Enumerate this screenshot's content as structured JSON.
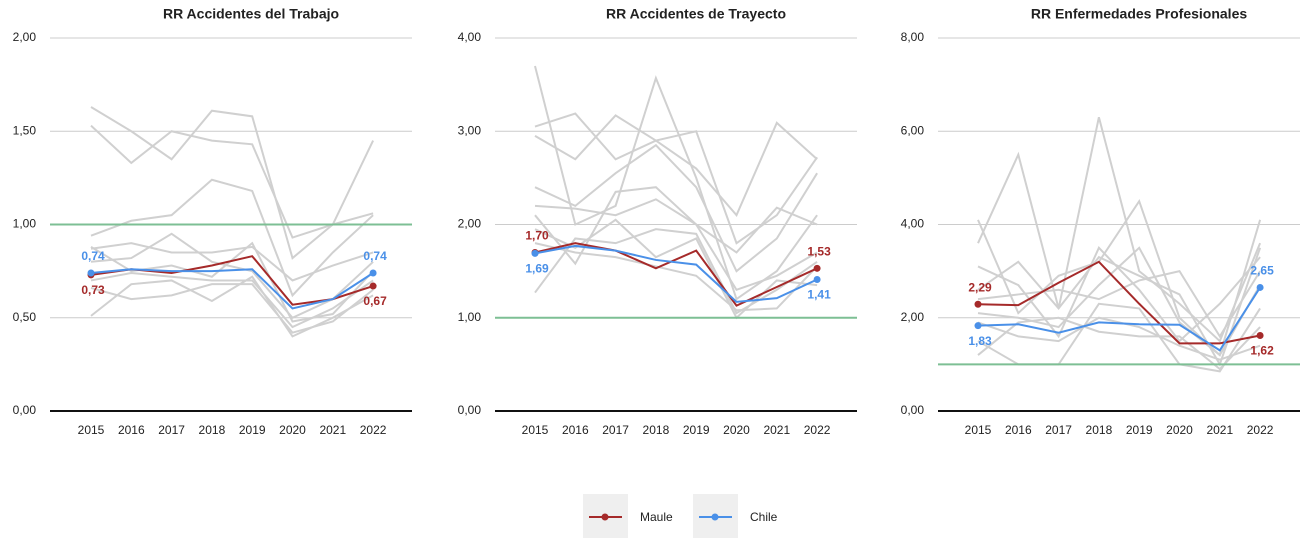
{
  "chart_data": [
    {
      "type": "line",
      "title": "RR Accidentes del Trabajo",
      "categories": [
        "2015",
        "2016",
        "2017",
        "2018",
        "2019",
        "2020",
        "2021",
        "2022"
      ],
      "ylim": [
        0,
        2
      ],
      "yticks": [
        {
          "value": 0,
          "label": "0,00"
        },
        {
          "value": 0.5,
          "label": "0,50"
        },
        {
          "value": 1,
          "label": "1,00"
        },
        {
          "value": 1.5,
          "label": "1,50"
        },
        {
          "value": 2,
          "label": "2,00"
        }
      ],
      "grid": true,
      "hline": 1,
      "hline_color": "#7dbf94",
      "series": [
        {
          "name": "Maule",
          "color": "#a52a2a",
          "values": [
            0.73,
            0.76,
            0.74,
            0.78,
            0.83,
            0.57,
            0.6,
            0.67
          ],
          "value_labels": [
            "0,73",
            null,
            null,
            null,
            null,
            null,
            null,
            "0,67"
          ]
        },
        {
          "name": "Chile",
          "color": "#4a90e8",
          "values": [
            0.74,
            0.76,
            0.75,
            0.75,
            0.76,
            0.55,
            0.6,
            0.74
          ],
          "value_labels": [
            "0,74",
            null,
            null,
            null,
            null,
            null,
            null,
            "0,74"
          ]
        }
      ],
      "background_series": {
        "color": "#d0d0d0",
        "values": [
          [
            1.63,
            1.5,
            1.35,
            1.61,
            1.58,
            0.82,
            1.0,
            1.45
          ],
          [
            1.53,
            1.33,
            1.5,
            1.45,
            1.43,
            0.93,
            1.0,
            1.06
          ],
          [
            0.94,
            1.02,
            1.05,
            1.24,
            1.18,
            0.62,
            0.85,
            1.05
          ],
          [
            0.87,
            0.9,
            0.85,
            0.85,
            0.88,
            0.7,
            0.78,
            0.85
          ],
          [
            0.8,
            0.82,
            0.95,
            0.8,
            0.75,
            0.5,
            0.6,
            0.8
          ],
          [
            0.7,
            0.74,
            0.72,
            0.7,
            0.7,
            0.45,
            0.55,
            0.7
          ],
          [
            0.66,
            0.6,
            0.62,
            0.68,
            0.68,
            0.42,
            0.48,
            0.65
          ],
          [
            0.51,
            0.68,
            0.7,
            0.59,
            0.72,
            0.4,
            0.5,
            0.62
          ],
          [
            0.88,
            0.75,
            0.78,
            0.72,
            0.9,
            0.48,
            0.52,
            0.75
          ]
        ]
      }
    },
    {
      "type": "line",
      "title": "RR Accidentes de Trayecto",
      "categories": [
        "2015",
        "2016",
        "2017",
        "2018",
        "2019",
        "2020",
        "2021",
        "2022"
      ],
      "ylim": [
        0,
        4
      ],
      "yticks": [
        {
          "value": 0,
          "label": "0,00"
        },
        {
          "value": 1,
          "label": "1,00"
        },
        {
          "value": 2,
          "label": "2,00"
        },
        {
          "value": 3,
          "label": "3,00"
        },
        {
          "value": 4,
          "label": "4,00"
        }
      ],
      "grid": true,
      "hline": 1,
      "hline_color": "#7dbf94",
      "series": [
        {
          "name": "Maule",
          "color": "#a52a2a",
          "values": [
            1.7,
            1.8,
            1.72,
            1.53,
            1.72,
            1.13,
            1.33,
            1.53
          ],
          "value_labels": [
            "1,70",
            null,
            null,
            null,
            null,
            null,
            null,
            "1,53"
          ]
        },
        {
          "name": "Chile",
          "color": "#4a90e8",
          "values": [
            1.69,
            1.77,
            1.72,
            1.62,
            1.57,
            1.17,
            1.21,
            1.41
          ],
          "value_labels": [
            "1,69",
            null,
            null,
            null,
            null,
            null,
            null,
            "1,41"
          ]
        }
      ],
      "background_series": {
        "color": "#d0d0d0",
        "values": [
          [
            3.7,
            2.0,
            2.2,
            3.57,
            2.5,
            1.2,
            1.5,
            2.1
          ],
          [
            3.05,
            3.19,
            2.7,
            2.9,
            3.0,
            1.8,
            2.1,
            2.72
          ],
          [
            2.95,
            2.7,
            3.17,
            2.9,
            2.6,
            2.1,
            3.09,
            2.7
          ],
          [
            2.4,
            2.2,
            2.55,
            2.85,
            2.4,
            1.5,
            1.85,
            2.55
          ],
          [
            2.2,
            2.17,
            2.1,
            2.27,
            2.0,
            1.7,
            2.18,
            2.0
          ],
          [
            2.1,
            1.58,
            2.35,
            2.4,
            2.0,
            1.3,
            1.45,
            1.7
          ],
          [
            1.27,
            1.85,
            1.8,
            1.95,
            1.9,
            1.05,
            1.3,
            1.6
          ],
          [
            1.8,
            1.7,
            1.65,
            1.55,
            1.45,
            1.08,
            1.1,
            1.55
          ],
          [
            1.95,
            1.75,
            2.05,
            1.65,
            1.85,
            1.0,
            1.4,
            1.35
          ]
        ]
      }
    },
    {
      "type": "line",
      "title": "RR Enfermedades Profesionales",
      "categories": [
        "2015",
        "2016",
        "2017",
        "2018",
        "2019",
        "2020",
        "2021",
        "2022"
      ],
      "ylim": [
        0,
        8
      ],
      "yticks": [
        {
          "value": 0,
          "label": "0,00"
        },
        {
          "value": 2,
          "label": "2,00"
        },
        {
          "value": 4,
          "label": "4,00"
        },
        {
          "value": 6,
          "label": "6,00"
        },
        {
          "value": 8,
          "label": "8,00"
        }
      ],
      "grid": true,
      "hline": 1,
      "hline_color": "#7dbf94",
      "series": [
        {
          "name": "Maule",
          "color": "#a52a2a",
          "values": [
            2.29,
            2.27,
            2.75,
            3.2,
            2.3,
            1.45,
            1.45,
            1.62
          ],
          "value_labels": [
            "2,29",
            null,
            null,
            null,
            null,
            null,
            null,
            "1,62"
          ]
        },
        {
          "name": "Chile",
          "color": "#4a90e8",
          "values": [
            1.83,
            1.86,
            1.68,
            1.9,
            1.86,
            1.85,
            1.3,
            2.65
          ],
          "value_labels": [
            "1,83",
            null,
            null,
            null,
            null,
            null,
            null,
            "2,65"
          ]
        }
      ],
      "background_series": {
        "color": "#d0d0d0",
        "values": [
          [
            4.1,
            2.1,
            2.9,
            3.2,
            4.5,
            2.0,
            1.2,
            4.1
          ],
          [
            3.6,
            5.5,
            2.2,
            6.3,
            3.0,
            2.3,
            1.5,
            3.6
          ],
          [
            3.1,
            2.7,
            1.6,
            3.5,
            2.6,
            1.5,
            2.3,
            3.3
          ],
          [
            2.6,
            3.2,
            2.2,
            3.3,
            2.9,
            2.5,
            1.0,
            3.5
          ],
          [
            2.4,
            2.5,
            2.6,
            2.4,
            2.8,
            3.0,
            1.6,
            3.0
          ],
          [
            2.1,
            2.0,
            1.8,
            2.7,
            3.5,
            1.9,
            1.2,
            2.7
          ],
          [
            1.5,
            1.0,
            1.0,
            2.3,
            2.2,
            1.0,
            0.85,
            2.2
          ],
          [
            1.2,
            1.9,
            2.0,
            1.7,
            1.6,
            1.6,
            0.9,
            1.8
          ],
          [
            1.9,
            1.6,
            1.5,
            2.0,
            1.8,
            1.4,
            1.1,
            1.4
          ]
        ]
      }
    }
  ]
}
